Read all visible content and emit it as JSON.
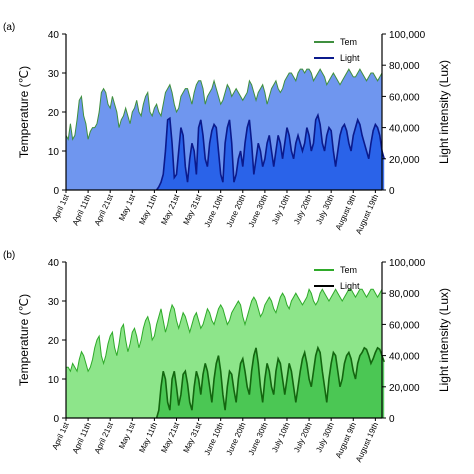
{
  "chart_data": [
    {
      "type": "area",
      "panel_label": "(a)",
      "xticks": [
        "April 1st",
        "April 11th",
        "April 21st",
        "May 1st",
        "May 11th",
        "May 21st",
        "May 31st",
        "June 10th",
        "June 20th",
        "June 30th",
        "July 10th",
        "July 20th",
        "July 30th",
        "August 9th",
        "August 19th"
      ],
      "ylabel_left": "Temperature (℃)",
      "ylabel_right": "Light intensity (Lux)",
      "ylim_left": [
        0,
        40
      ],
      "ylim_right": [
        0,
        100000
      ],
      "yticks_left": [
        "0",
        "10",
        "20",
        "30",
        "40"
      ],
      "yticks_right": [
        "0",
        "20,000",
        "40,000",
        "60,000",
        "80,000",
        "100,000"
      ],
      "legend_position": "top-right",
      "colors": {
        "temp_fill": "#6f96ef",
        "temp_line": "#3f8f3f",
        "light_fill": "#1e5ae8",
        "light_line": "#0b1a8c"
      },
      "series": [
        {
          "name": "Tem",
          "axis": "left",
          "start_day": 0,
          "values": [
            14,
            13,
            17,
            13,
            14,
            18,
            23,
            24,
            19,
            17,
            13,
            15,
            16,
            16,
            17,
            20,
            25,
            26,
            25,
            22,
            21,
            24,
            22,
            20,
            16,
            18,
            19,
            21,
            19,
            17,
            20,
            21,
            23,
            20,
            19,
            22,
            24,
            25,
            20,
            19,
            21,
            22,
            20,
            19,
            22,
            25,
            26,
            27,
            25,
            22,
            20,
            21,
            24,
            25,
            26,
            26,
            24,
            22,
            25,
            27,
            28,
            28,
            26,
            22,
            24,
            25,
            26,
            28,
            26,
            24,
            22,
            23,
            25,
            27,
            26,
            24,
            25,
            26,
            25,
            24,
            23,
            24,
            25,
            28,
            27,
            25,
            23,
            25,
            26,
            27,
            25,
            22,
            24,
            26,
            27,
            28,
            26,
            25,
            26,
            28,
            29,
            30,
            30,
            29,
            28,
            30,
            31,
            31,
            30,
            31,
            31,
            30,
            28,
            29,
            30,
            31,
            30,
            29,
            27,
            28,
            29,
            30,
            29,
            28,
            27,
            28,
            29,
            30,
            31,
            30,
            29,
            29,
            30,
            31,
            30,
            29,
            28,
            29,
            30,
            30,
            29,
            28,
            29,
            30
          ]
        },
        {
          "name": "Light",
          "axis": "right",
          "start_day": 41,
          "values": [
            0,
            2000,
            5000,
            10000,
            25000,
            45000,
            46000,
            30000,
            8000,
            10000,
            25000,
            40000,
            35000,
            15000,
            5000,
            20000,
            30000,
            25000,
            10000,
            40000,
            45000,
            35000,
            20000,
            15000,
            30000,
            38000,
            42000,
            40000,
            25000,
            10000,
            5000,
            30000,
            40000,
            45000,
            30000,
            5000,
            10000,
            20000,
            25000,
            15000,
            30000,
            40000,
            45000,
            30000,
            10000,
            20000,
            30000,
            25000,
            15000,
            20000,
            30000,
            35000,
            25000,
            15000,
            25000,
            35000,
            30000,
            20000,
            30000,
            40000,
            35000,
            25000,
            20000,
            30000,
            35000,
            30000,
            25000,
            30000,
            40000,
            35000,
            25000,
            30000,
            45000,
            48000,
            42000,
            30000,
            25000,
            35000,
            40000,
            38000,
            25000,
            15000,
            25000,
            35000,
            40000,
            42000,
            38000,
            30000,
            25000,
            35000,
            40000,
            45000,
            42000,
            35000,
            30000,
            25000,
            20000,
            30000,
            38000,
            42000,
            40000,
            35000,
            25000,
            20000
          ]
        }
      ]
    },
    {
      "type": "area",
      "panel_label": "(b)",
      "xticks": [
        "April 1st",
        "April 11th",
        "April 21st",
        "May 1st",
        "May 11th",
        "May 21st",
        "May 31st",
        "June 10th",
        "June 20th",
        "June 30th",
        "July 10th",
        "July 20th",
        "July 30th",
        "August 9th",
        "August 19th"
      ],
      "ylabel_left": "Temperature (℃)",
      "ylabel_right": "Light intensity (Lux)",
      "ylim_left": [
        0,
        40
      ],
      "ylim_right": [
        0,
        100000
      ],
      "yticks_left": [
        "0",
        "10",
        "20",
        "30",
        "40"
      ],
      "yticks_right": [
        "0",
        "20,000",
        "40,000",
        "60,000",
        "80,000",
        "100,000"
      ],
      "legend_position": "top-right",
      "colors": {
        "temp_fill": "#8de58a",
        "temp_line": "#2faa2a",
        "light_fill": "#3fc24a",
        "light_line": "#13660f"
      },
      "series": [
        {
          "name": "Tem",
          "axis": "left",
          "start_day": 0,
          "values": [
            13,
            13,
            12,
            14,
            13,
            12,
            15,
            17,
            16,
            14,
            12,
            13,
            15,
            18,
            20,
            21,
            16,
            14,
            16,
            19,
            21,
            22,
            18,
            16,
            19,
            23,
            24,
            20,
            17,
            19,
            22,
            23,
            21,
            18,
            20,
            23,
            25,
            26,
            24,
            20,
            21,
            24,
            26,
            28,
            25,
            22,
            24,
            27,
            29,
            28,
            25,
            23,
            25,
            27,
            26,
            24,
            22,
            24,
            26,
            27,
            25,
            23,
            24,
            26,
            28,
            27,
            25,
            24,
            26,
            28,
            29,
            28,
            26,
            24,
            25,
            27,
            28,
            29,
            30,
            29,
            26,
            24,
            26,
            28,
            30,
            31,
            30,
            28,
            26,
            27,
            29,
            30,
            31,
            30,
            28,
            27,
            29,
            31,
            32,
            31,
            29,
            28,
            30,
            31,
            32,
            31,
            30,
            29,
            30,
            31,
            33,
            32,
            30,
            29,
            30,
            32,
            33,
            32,
            31,
            30,
            31,
            32,
            33,
            32,
            31,
            30,
            31,
            32,
            33,
            33,
            32,
            31,
            32,
            33,
            33,
            32,
            31,
            32,
            33,
            33,
            32,
            31,
            32,
            33
          ]
        },
        {
          "name": "Light",
          "axis": "right",
          "start_day": 41,
          "values": [
            0,
            5000,
            20000,
            30000,
            25000,
            10000,
            5000,
            25000,
            30000,
            20000,
            8000,
            15000,
            28000,
            30000,
            22000,
            10000,
            5000,
            20000,
            30000,
            25000,
            15000,
            28000,
            35000,
            30000,
            20000,
            10000,
            25000,
            35000,
            40000,
            30000,
            15000,
            5000,
            20000,
            30000,
            28000,
            18000,
            10000,
            25000,
            35000,
            38000,
            30000,
            20000,
            15000,
            30000,
            40000,
            45000,
            35000,
            20000,
            10000,
            25000,
            35000,
            30000,
            20000,
            15000,
            30000,
            38000,
            35000,
            25000,
            15000,
            25000,
            35000,
            30000,
            20000,
            10000,
            20000,
            30000,
            38000,
            42000,
            35000,
            25000,
            20000,
            30000,
            40000,
            45000,
            42000,
            30000,
            20000,
            10000,
            25000,
            35000,
            42000,
            40000,
            30000,
            20000,
            25000,
            35000,
            40000,
            42000,
            38000,
            30000,
            25000,
            35000,
            40000,
            42000,
            45000,
            44000,
            40000,
            35000,
            38000,
            42000,
            45000,
            44000,
            40000,
            36000
          ]
        }
      ]
    }
  ]
}
